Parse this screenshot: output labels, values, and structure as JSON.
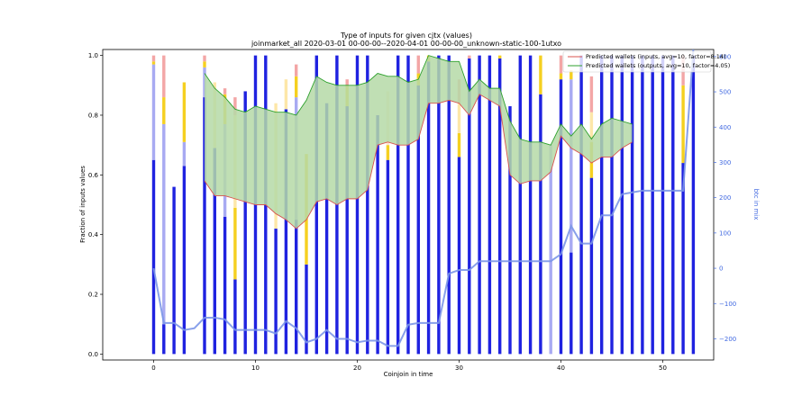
{
  "chart_data": {
    "type": "bar",
    "title": "Type of inputs for given cjtx (values)",
    "subtitle": "joinmarket_all 2020-03-01 00-00-00--2020-04-01 00-00-00_unknown-static-100-1utxo",
    "xlabel": "Coinjoin in time",
    "ylabel": "Fraction of inputs values",
    "y2label": "btc in mix",
    "xlim": [
      -5,
      55
    ],
    "ylim": [
      -0.02,
      1.02
    ],
    "y2lim": [
      -260,
      620
    ],
    "xticks": [
      0,
      10,
      20,
      30,
      40,
      50
    ],
    "yticks": [
      0.0,
      0.2,
      0.4,
      0.6,
      0.8,
      1.0
    ],
    "y2ticks": [
      -200,
      -100,
      0,
      100,
      200,
      300,
      400,
      500,
      600
    ],
    "x": [
      0,
      1,
      2,
      3,
      4,
      5,
      6,
      7,
      8,
      9,
      10,
      11,
      12,
      13,
      14,
      15,
      16,
      17,
      18,
      19,
      20,
      21,
      22,
      23,
      24,
      25,
      26,
      27,
      28,
      29,
      30,
      31,
      32,
      33,
      34,
      35,
      36,
      37,
      38,
      39,
      40,
      41,
      42,
      43,
      44,
      45,
      46,
      47,
      48,
      49,
      50,
      51,
      52,
      53
    ],
    "series": [
      {
        "key": "fresh",
        "color": "#1f22e0",
        "values": [
          0.65,
          0.1,
          0.56,
          0.63,
          0.0,
          0.86,
          0.69,
          0.46,
          0.25,
          0.88,
          1.0,
          1.0,
          0.42,
          0.82,
          0.45,
          0.3,
          1.0,
          0.84,
          1.0,
          0.83,
          1.0,
          1.0,
          0.8,
          0.65,
          1.0,
          1.0,
          0.9,
          0.98,
          1.0,
          1.0,
          0.66,
          0.99,
          1.0,
          1.0,
          0.99,
          0.83,
          1.0,
          1.0,
          0.87,
          0.0,
          0.92,
          0.34,
          1.0,
          0.59,
          1.0,
          1.0,
          1.0,
          1.0,
          1.0,
          1.0,
          1.0,
          1.0,
          0.64,
          1.0
        ]
      },
      {
        "key": "remix",
        "color": "#a8aaf2",
        "values": [
          0.32,
          0.67,
          0.0,
          0.08,
          0.0,
          0.1,
          0.0,
          0.31,
          0.0,
          0.0,
          0.0,
          0.0,
          0.0,
          0.0,
          0.41,
          0.0,
          0.0,
          0.0,
          0.0,
          0.0,
          0.0,
          0.0,
          0.0,
          0.0,
          0.0,
          0.0,
          0.0,
          0.0,
          0.0,
          0.0,
          0.0,
          0.0,
          0.0,
          0.0,
          0.0,
          0.0,
          0.0,
          0.0,
          0.0,
          0.7,
          0.0,
          0.58,
          0.0,
          0.0,
          0.0,
          0.0,
          0.0,
          0.0,
          0.0,
          0.0,
          0.0,
          0.0,
          0.0,
          0.0
        ]
      },
      {
        "key": "friends",
        "color": "#f5d020",
        "values": [
          0.01,
          0.09,
          0.0,
          0.2,
          0.0,
          0.02,
          0.0,
          0.1,
          0.24,
          0.0,
          0.0,
          0.0,
          0.0,
          0.0,
          0.07,
          0.37,
          0.0,
          0.0,
          0.0,
          0.07,
          0.0,
          0.0,
          0.0,
          0.05,
          0.0,
          0.0,
          0.04,
          0.02,
          0.0,
          0.0,
          0.08,
          0.0,
          0.0,
          0.0,
          0.01,
          0.0,
          0.0,
          0.0,
          0.13,
          0.0,
          0.02,
          0.03,
          0.0,
          0.12,
          0.0,
          0.0,
          0.0,
          0.0,
          0.0,
          0.0,
          0.0,
          0.0,
          0.26,
          0.0
        ]
      },
      {
        "key": "friends-light",
        "color": "#fde7a8",
        "values": [
          0.0,
          0.0,
          0.0,
          0.0,
          0.0,
          0.0,
          0.22,
          0.0,
          0.31,
          0.0,
          0.0,
          0.0,
          0.42,
          0.1,
          0.0,
          0.0,
          0.0,
          0.0,
          0.0,
          0.0,
          0.0,
          0.0,
          0.0,
          0.0,
          0.0,
          0.0,
          0.0,
          0.0,
          0.0,
          0.0,
          0.1,
          0.0,
          0.0,
          0.0,
          0.0,
          0.0,
          0.0,
          0.0,
          0.0,
          0.0,
          0.0,
          0.0,
          0.0,
          0.1,
          0.0,
          0.0,
          0.0,
          0.0,
          0.0,
          0.0,
          0.0,
          0.0,
          0.0,
          0.0
        ]
      },
      {
        "key": "other-light",
        "color": "#fde6cf",
        "values": [
          0.0,
          0.0,
          0.0,
          0.0,
          0.0,
          0.0,
          0.0,
          0.0,
          0.0,
          0.0,
          0.0,
          0.0,
          0.0,
          0.0,
          0.0,
          0.0,
          0.0,
          0.0,
          0.0,
          0.0,
          0.0,
          0.0,
          0.0,
          0.18,
          0.0,
          0.0,
          0.0,
          0.0,
          0.0,
          0.0,
          0.0,
          0.0,
          0.0,
          0.0,
          0.0,
          0.0,
          0.0,
          0.0,
          0.0,
          0.0,
          0.0,
          0.0,
          0.0,
          0.0,
          0.0,
          0.0,
          0.0,
          0.0,
          0.0,
          0.0,
          0.0,
          0.0,
          0.0,
          0.0
        ]
      },
      {
        "key": "unknown",
        "color": "#f3a6a6",
        "values": [
          0.02,
          0.14,
          0.0,
          0.0,
          0.0,
          0.02,
          0.0,
          0.02,
          0.06,
          0.0,
          0.0,
          0.0,
          0.0,
          0.0,
          0.04,
          0.0,
          0.0,
          0.0,
          0.0,
          0.02,
          0.0,
          0.0,
          0.0,
          0.0,
          0.0,
          0.0,
          0.06,
          0.0,
          0.0,
          0.0,
          0.08,
          0.01,
          0.0,
          0.0,
          0.0,
          0.0,
          0.0,
          0.0,
          0.0,
          0.0,
          0.06,
          0.0,
          0.0,
          0.12,
          0.0,
          0.0,
          0.0,
          0.0,
          0.0,
          0.0,
          0.0,
          0.0,
          0.1,
          0.0
        ]
      }
    ],
    "btc_in_mix": {
      "color": "#7b96e8",
      "values": [
        0,
        -155,
        -155,
        -175,
        -170,
        -140,
        -140,
        -145,
        -175,
        -175,
        -175,
        -175,
        -185,
        -150,
        -170,
        -210,
        -200,
        -175,
        -200,
        -200,
        -210,
        -205,
        -205,
        -220,
        -220,
        -160,
        -155,
        -155,
        -155,
        -15,
        -5,
        -5,
        20,
        20,
        20,
        20,
        20,
        20,
        20,
        20,
        40,
        120,
        70,
        70,
        150,
        150,
        210,
        215,
        220,
        220,
        220,
        220,
        220,
        620
      ]
    },
    "pred_inputs": {
      "name": "Predicted wallets (inputs, avg=10, factor=8.14)",
      "color": "#d9534f",
      "x": [
        5,
        6,
        7,
        8,
        9,
        10,
        11,
        12,
        13,
        14,
        15,
        16,
        17,
        18,
        19,
        20,
        21,
        22,
        23,
        24,
        25,
        26,
        27,
        28,
        29,
        30,
        31,
        32,
        33,
        34,
        35,
        36,
        37,
        38,
        39,
        40,
        41,
        42,
        43,
        44,
        45,
        46,
        47
      ],
      "values": [
        0.58,
        0.53,
        0.53,
        0.52,
        0.51,
        0.5,
        0.5,
        0.47,
        0.45,
        0.42,
        0.45,
        0.51,
        0.52,
        0.5,
        0.52,
        0.52,
        0.55,
        0.7,
        0.71,
        0.7,
        0.7,
        0.72,
        0.84,
        0.84,
        0.85,
        0.84,
        0.8,
        0.87,
        0.85,
        0.83,
        0.6,
        0.57,
        0.58,
        0.58,
        0.61,
        0.73,
        0.69,
        0.67,
        0.64,
        0.66,
        0.66,
        0.69,
        0.71
      ]
    },
    "pred_outputs": {
      "name": "Predicted wallets (outputs, avg=10, factor=4.05)",
      "color": "#2ca02c",
      "fill": "#b5d9a7",
      "x": [
        5,
        6,
        7,
        8,
        9,
        10,
        11,
        12,
        13,
        14,
        15,
        16,
        17,
        18,
        19,
        20,
        21,
        22,
        23,
        24,
        25,
        26,
        27,
        28,
        29,
        30,
        31,
        32,
        33,
        34,
        35,
        36,
        37,
        38,
        39,
        40,
        41,
        42,
        43,
        44,
        45,
        46,
        47
      ],
      "values": [
        0.94,
        0.89,
        0.86,
        0.82,
        0.81,
        0.83,
        0.82,
        0.81,
        0.81,
        0.8,
        0.85,
        0.93,
        0.91,
        0.9,
        0.9,
        0.9,
        0.91,
        0.94,
        0.93,
        0.93,
        0.91,
        0.92,
        1.0,
        0.99,
        0.98,
        0.98,
        0.88,
        0.92,
        0.89,
        0.89,
        0.78,
        0.72,
        0.71,
        0.71,
        0.7,
        0.77,
        0.73,
        0.77,
        0.72,
        0.77,
        0.79,
        0.78,
        0.77
      ]
    },
    "legend_position": "top-right"
  }
}
